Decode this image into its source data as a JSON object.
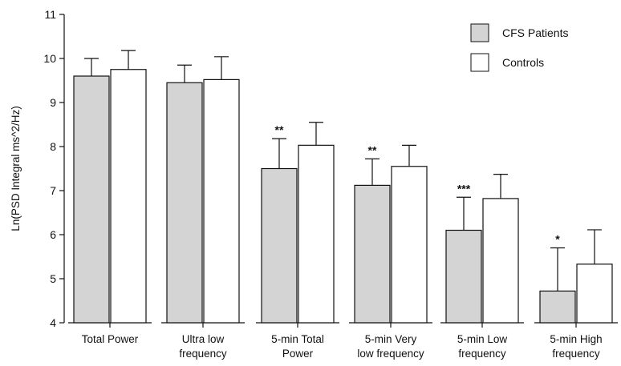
{
  "chart_data": {
    "type": "bar",
    "title": "",
    "xlabel": "",
    "ylabel": "Ln(PSD Integral ms^2/Hz)",
    "ylim": [
      4,
      11
    ],
    "yticks": [
      "4",
      "5",
      "6",
      "7",
      "8",
      "9",
      "10",
      "11"
    ],
    "categories": [
      [
        "Total Power"
      ],
      [
        "Ultra low",
        "frequency"
      ],
      [
        "5-min Total",
        "Power"
      ],
      [
        "5-min Very",
        "low frequency"
      ],
      [
        "5-min Low",
        "frequency"
      ],
      [
        "5-min High",
        "frequency"
      ]
    ],
    "series": [
      {
        "name": "CFS Patients",
        "color": "#d4d4d4",
        "values": [
          9.6,
          9.45,
          7.5,
          7.12,
          6.1,
          4.72
        ],
        "errors": [
          0.4,
          0.4,
          0.68,
          0.6,
          0.75,
          0.98
        ],
        "significance": [
          "",
          "",
          "**",
          "**",
          "***",
          "*"
        ]
      },
      {
        "name": "Controls",
        "color": "#ffffff",
        "values": [
          9.75,
          9.52,
          8.03,
          7.55,
          6.82,
          5.33
        ],
        "errors": [
          0.43,
          0.52,
          0.52,
          0.48,
          0.55,
          0.78
        ]
      }
    ],
    "legend": {
      "position": "top-right"
    },
    "grid": false
  }
}
